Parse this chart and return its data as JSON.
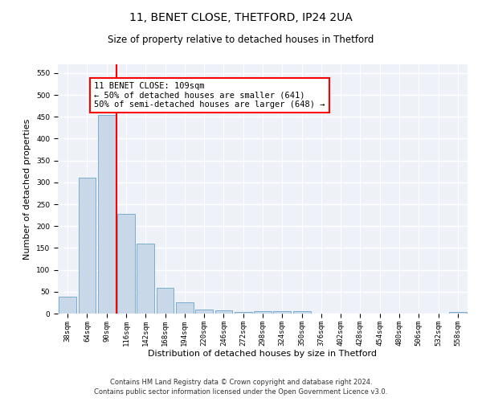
{
  "title_line1": "11, BENET CLOSE, THETFORD, IP24 2UA",
  "title_line2": "Size of property relative to detached houses in Thetford",
  "xlabel": "Distribution of detached houses by size in Thetford",
  "ylabel": "Number of detached properties",
  "bar_labels": [
    "38sqm",
    "64sqm",
    "90sqm",
    "116sqm",
    "142sqm",
    "168sqm",
    "194sqm",
    "220sqm",
    "246sqm",
    "272sqm",
    "298sqm",
    "324sqm",
    "350sqm",
    "376sqm",
    "402sqm",
    "428sqm",
    "454sqm",
    "480sqm",
    "506sqm",
    "532sqm",
    "558sqm"
  ],
  "bar_values": [
    38,
    310,
    455,
    228,
    160,
    58,
    25,
    10,
    8,
    4,
    5,
    5,
    5,
    0,
    0,
    0,
    0,
    0,
    0,
    0,
    4
  ],
  "bar_color": "#c8d8e8",
  "bar_edge_color": "#7aadcf",
  "red_line_index": 3,
  "annotation_text": "11 BENET CLOSE: 109sqm\n← 50% of detached houses are smaller (641)\n50% of semi-detached houses are larger (648) →",
  "annotation_box_color": "white",
  "annotation_box_edge": "red",
  "ylim": [
    0,
    570
  ],
  "yticks": [
    0,
    50,
    100,
    150,
    200,
    250,
    300,
    350,
    400,
    450,
    500,
    550
  ],
  "background_color": "#eef2f8",
  "grid_color": "#ffffff",
  "footer_line1": "Contains HM Land Registry data © Crown copyright and database right 2024.",
  "footer_line2": "Contains public sector information licensed under the Open Government Licence v3.0.",
  "title_fontsize": 10,
  "subtitle_fontsize": 8.5,
  "axis_label_fontsize": 8,
  "tick_fontsize": 6.5,
  "annotation_fontsize": 7.5,
  "footer_fontsize": 6
}
